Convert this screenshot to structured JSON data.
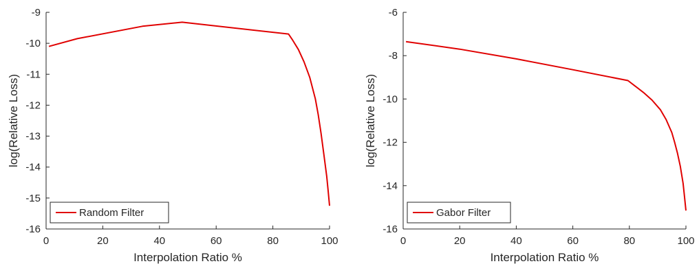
{
  "chart_data": [
    {
      "type": "line",
      "xlabel": "Interpolation Ratio %",
      "ylabel": "log(Relative Loss)",
      "xlim": [
        0,
        100
      ],
      "ylim": [
        -16,
        -9
      ],
      "xticks": [
        0,
        20,
        40,
        60,
        80,
        100
      ],
      "yticks": [
        -9,
        -10,
        -11,
        -12,
        -13,
        -14,
        -15,
        -16
      ],
      "grid": false,
      "legend_position": "bottom-left",
      "series": [
        {
          "name": "Random Filter",
          "color": "#e00000",
          "x": [
            1,
            11,
            34,
            48,
            85.5,
            87,
            89,
            91,
            93,
            95,
            96,
            97,
            98,
            99,
            99.5,
            100
          ],
          "y": [
            -10.1,
            -9.85,
            -9.45,
            -9.32,
            -9.7,
            -9.9,
            -10.2,
            -10.6,
            -11.1,
            -11.8,
            -12.3,
            -12.9,
            -13.6,
            -14.3,
            -14.75,
            -15.25
          ]
        }
      ]
    },
    {
      "type": "line",
      "xlabel": "Interpolation Ratio %",
      "ylabel": "log(Relative Loss)",
      "xlim": [
        0,
        100
      ],
      "ylim": [
        -16,
        -6
      ],
      "xticks": [
        0,
        20,
        40,
        60,
        80,
        100
      ],
      "yticks": [
        -6,
        -8,
        -10,
        -12,
        -14,
        -16
      ],
      "grid": false,
      "legend_position": "bottom-left",
      "series": [
        {
          "name": "Gabor Filter",
          "color": "#e00000",
          "x": [
            1,
            20,
            40,
            60,
            79.5,
            82,
            85,
            88,
            91,
            93,
            95,
            96,
            97,
            98,
            99,
            99.5,
            100
          ],
          "y": [
            -7.35,
            -7.7,
            -8.15,
            -8.65,
            -9.15,
            -9.4,
            -9.7,
            -10.05,
            -10.5,
            -10.95,
            -11.55,
            -12.0,
            -12.5,
            -13.1,
            -13.9,
            -14.5,
            -15.15
          ]
        }
      ]
    }
  ]
}
